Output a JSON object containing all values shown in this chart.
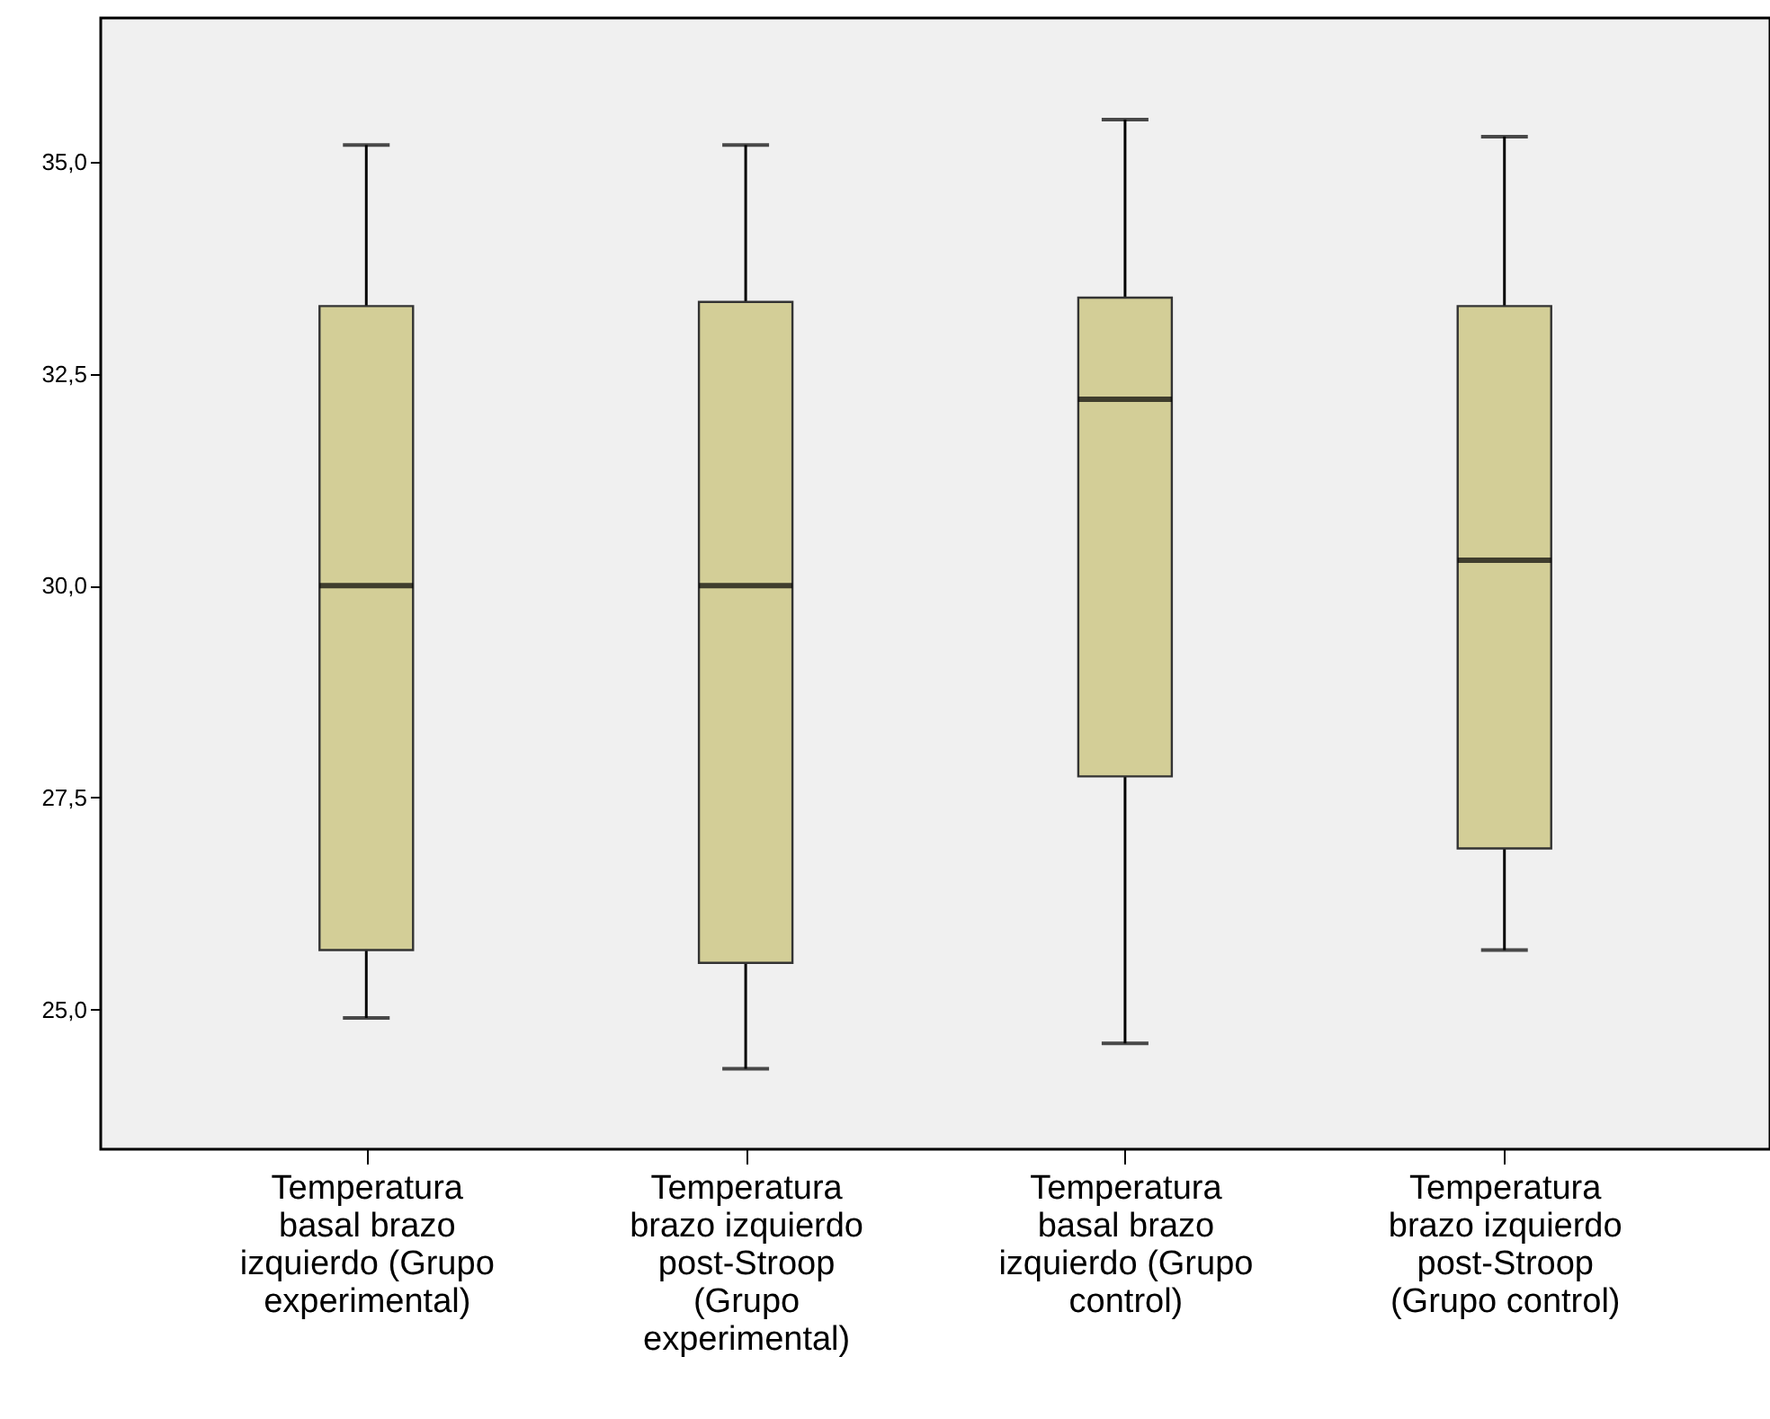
{
  "chart_data": {
    "type": "box",
    "categories": [
      "Temperatura basal brazo izquierdo (Grupo experimental)",
      "Temperatura brazo izquierdo post-Stroop (Grupo experimental)",
      "Temperatura basal brazo izquierdo (Grupo control)",
      "Temperatura brazo izquierdo post-Stroop (Grupo control)"
    ],
    "boxes": [
      {
        "low": 24.9,
        "q1": 25.7,
        "median": 30.0,
        "q3": 33.3,
        "high": 35.2
      },
      {
        "low": 24.3,
        "q1": 25.55,
        "median": 30.0,
        "q3": 33.35,
        "high": 35.2
      },
      {
        "low": 24.6,
        "q1": 27.75,
        "median": 32.2,
        "q3": 33.4,
        "high": 35.5
      },
      {
        "low": 25.7,
        "q1": 26.9,
        "median": 30.3,
        "q3": 33.3,
        "high": 35.3
      }
    ],
    "color": "#d3ce97",
    "ylim": [
      23.35,
      36.7
    ],
    "yticks": [
      {
        "value": 25,
        "label": "25,0"
      },
      {
        "value": 27.5,
        "label": "27,5"
      },
      {
        "value": 30,
        "label": "30,0"
      },
      {
        "value": 32.5,
        "label": "32,5"
      },
      {
        "value": 35,
        "label": "35,0"
      }
    ],
    "grid": false
  }
}
